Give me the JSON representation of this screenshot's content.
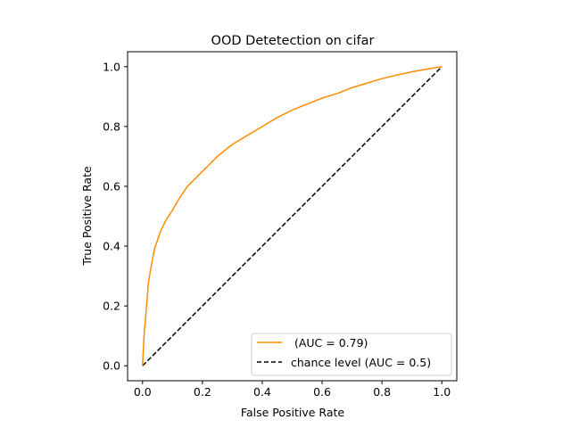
{
  "chart_data": {
    "type": "line",
    "title": "OOD Detetection on cifar",
    "xlabel": "False Positive Rate",
    "ylabel": "True Positive Rate",
    "xlim": [
      -0.05,
      1.05
    ],
    "ylim": [
      -0.05,
      1.05
    ],
    "xticks": [
      0.0,
      0.2,
      0.4,
      0.6,
      0.8,
      1.0
    ],
    "xtick_labels": [
      "0.0",
      "0.2",
      "0.4",
      "0.6",
      "0.8",
      "1.0"
    ],
    "yticks": [
      0.0,
      0.2,
      0.4,
      0.6,
      0.8,
      1.0
    ],
    "ytick_labels": [
      "0.0",
      "0.2",
      "0.4",
      "0.6",
      "0.8",
      "1.0"
    ],
    "grid": false,
    "legend_position": "lower-right",
    "series": [
      {
        "name": " (AUC = 0.79)",
        "color": "#ff8c00",
        "style": "solid",
        "x": [
          0.0,
          0.005,
          0.01,
          0.015,
          0.02,
          0.03,
          0.04,
          0.05,
          0.06,
          0.08,
          0.1,
          0.12,
          0.15,
          0.18,
          0.2,
          0.22,
          0.25,
          0.3,
          0.35,
          0.4,
          0.45,
          0.5,
          0.55,
          0.6,
          0.65,
          0.7,
          0.75,
          0.8,
          0.85,
          0.9,
          0.95,
          0.98,
          1.0
        ],
        "y": [
          0.0,
          0.1,
          0.16,
          0.22,
          0.28,
          0.34,
          0.39,
          0.42,
          0.45,
          0.49,
          0.52,
          0.555,
          0.6,
          0.63,
          0.65,
          0.67,
          0.7,
          0.74,
          0.77,
          0.8,
          0.83,
          0.855,
          0.875,
          0.895,
          0.91,
          0.93,
          0.945,
          0.96,
          0.972,
          0.983,
          0.992,
          0.997,
          1.0
        ]
      },
      {
        "name": "chance level (AUC = 0.5)",
        "color": "#000000",
        "style": "dashed",
        "x": [
          0.0,
          1.0
        ],
        "y": [
          0.0,
          1.0
        ]
      }
    ]
  }
}
